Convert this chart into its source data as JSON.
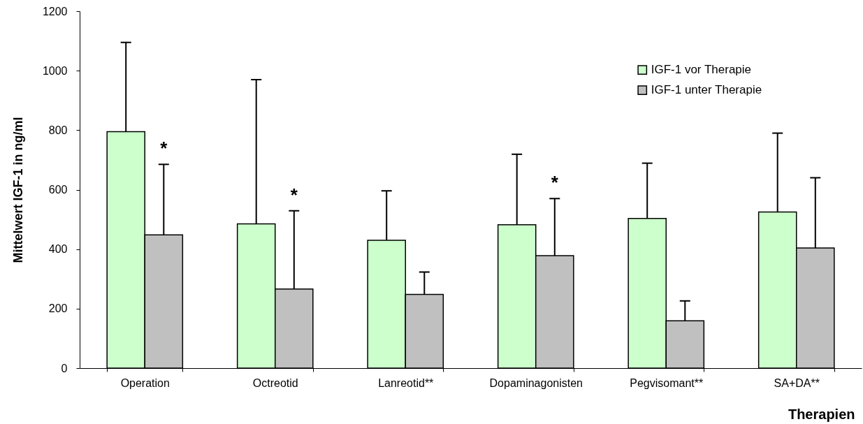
{
  "chart_data": {
    "type": "bar",
    "xlabel": "Therapien",
    "ylabel": "Mittelwert IGF-1 in ng/ml",
    "categories": [
      "Operation",
      "Octreotid",
      "Lanreotid**",
      "Dopaminagonisten",
      "Pegvisomant**",
      "SA+DA**"
    ],
    "series": [
      {
        "name": "IGF-1 vor Therapie",
        "color": "#ccffcc",
        "values": [
          795,
          485,
          430,
          482,
          503,
          525
        ],
        "errors": [
          [
            795,
            1095
          ],
          [
            485,
            970
          ],
          [
            430,
            596
          ],
          [
            482,
            719
          ],
          [
            503,
            689
          ],
          [
            525,
            790
          ]
        ]
      },
      {
        "name": "IGF-1 unter  Therapie",
        "color": "#c0c0c0",
        "values": [
          448,
          266,
          248,
          378,
          159,
          404
        ],
        "errors": [
          [
            448,
            685
          ],
          [
            266,
            529
          ],
          [
            248,
            323
          ],
          [
            378,
            570
          ],
          [
            159,
            226
          ],
          [
            404,
            640
          ]
        ]
      }
    ],
    "ylim": [
      0,
      1200
    ],
    "yticks": [
      0,
      200,
      400,
      600,
      800,
      1000,
      1200
    ],
    "legend": "top right",
    "annotations": [
      "*",
      "*",
      "*"
    ]
  }
}
